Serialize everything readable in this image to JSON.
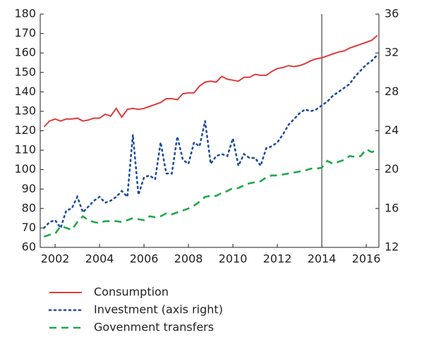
{
  "chart_data": {
    "type": "line",
    "x": [
      2001.5,
      2001.75,
      2002,
      2002.25,
      2002.5,
      2002.75,
      2003,
      2003.25,
      2003.5,
      2003.75,
      2004,
      2004.25,
      2004.5,
      2004.75,
      2005,
      2005.25,
      2005.5,
      2005.75,
      2006,
      2006.25,
      2006.5,
      2006.75,
      2007,
      2007.25,
      2007.5,
      2007.75,
      2008,
      2008.25,
      2008.5,
      2008.75,
      2009,
      2009.25,
      2009.5,
      2009.75,
      2010,
      2010.25,
      2010.5,
      2010.75,
      2011,
      2011.25,
      2011.5,
      2011.75,
      2012,
      2012.25,
      2012.5,
      2012.75,
      2013,
      2013.25,
      2013.5,
      2013.75,
      2014,
      2014.25,
      2014.5,
      2014.75,
      2015,
      2015.25,
      2015.5,
      2015.75,
      2016,
      2016.25,
      2016.5
    ],
    "series": [
      {
        "name": "Consumption",
        "color": "#e23b3b",
        "dash": "solid",
        "axis": "y",
        "values": [
          122,
          125,
          126,
          125,
          126,
          126,
          126.5,
          125,
          125.5,
          126.5,
          126.5,
          128.5,
          127.5,
          131.5,
          127,
          131,
          131.5,
          131,
          131.5,
          132.5,
          133.5,
          134.5,
          136.5,
          136.5,
          136,
          139,
          139.5,
          139.5,
          143,
          145,
          145.5,
          145,
          148,
          146.5,
          146,
          145.5,
          147.5,
          147.5,
          149,
          148.5,
          148.5,
          150.5,
          152,
          152.5,
          153.5,
          153,
          153.5,
          154.5,
          156,
          157,
          157.5,
          158.5,
          159.5,
          160.5,
          161,
          162.5,
          163.5,
          164.5,
          165.5,
          166.5,
          169
        ]
      },
      {
        "name": "Investment (axis right)",
        "color": "#1f4e9e",
        "dash": "dotted",
        "axis": "y2",
        "values": [
          14,
          14.6,
          14.8,
          14,
          15.8,
          16,
          17.2,
          15.6,
          16.2,
          16.8,
          17.2,
          16.6,
          16.8,
          17.2,
          17.8,
          17.2,
          23.6,
          17.4,
          19.2,
          19.4,
          19,
          22.8,
          19.6,
          19.6,
          23.4,
          21,
          20.6,
          22.8,
          22.4,
          25,
          20.6,
          21.4,
          21.6,
          21.4,
          23.2,
          20.4,
          21.6,
          21.2,
          21.2,
          20.4,
          22.2,
          22.4,
          22.8,
          23.6,
          24.6,
          25.2,
          25.8,
          26.2,
          26,
          26.2,
          26.6,
          27,
          27.6,
          28,
          28.4,
          28.8,
          29.6,
          30.2,
          30.8,
          31.2,
          31.8
        ]
      },
      {
        "name": "Govenment transfers",
        "color": "#1fa84a",
        "dash": "dashed",
        "axis": "y",
        "values": [
          65.5,
          66.5,
          67,
          71,
          70,
          69,
          73,
          76,
          74,
          73,
          72.5,
          73.5,
          73.5,
          73.5,
          73,
          74,
          75,
          74.5,
          74,
          76,
          75.5,
          76,
          77.5,
          77,
          78,
          79,
          80,
          81.5,
          83.5,
          86,
          86.5,
          86.5,
          88,
          89,
          90.5,
          90.5,
          92,
          93,
          93.5,
          94,
          96,
          97,
          97,
          97.5,
          98,
          98.5,
          99,
          99.5,
          100.5,
          100.5,
          101,
          104.5,
          103,
          104,
          105,
          107,
          106.5,
          107,
          110.5,
          109,
          110
        ]
      }
    ],
    "xlim": [
      2001.33,
      2016.57
    ],
    "xticks": [
      2002,
      2004,
      2006,
      2008,
      2010,
      2012,
      2014,
      2016
    ],
    "ylim": [
      60,
      180
    ],
    "yticks": [
      60,
      70,
      80,
      90,
      100,
      110,
      120,
      130,
      140,
      150,
      160,
      170,
      180
    ],
    "y2lim": [
      12,
      36
    ],
    "y2ticks": [
      12,
      16,
      20,
      24,
      28,
      32,
      36
    ],
    "vline": 2014,
    "legend": "bottom"
  }
}
